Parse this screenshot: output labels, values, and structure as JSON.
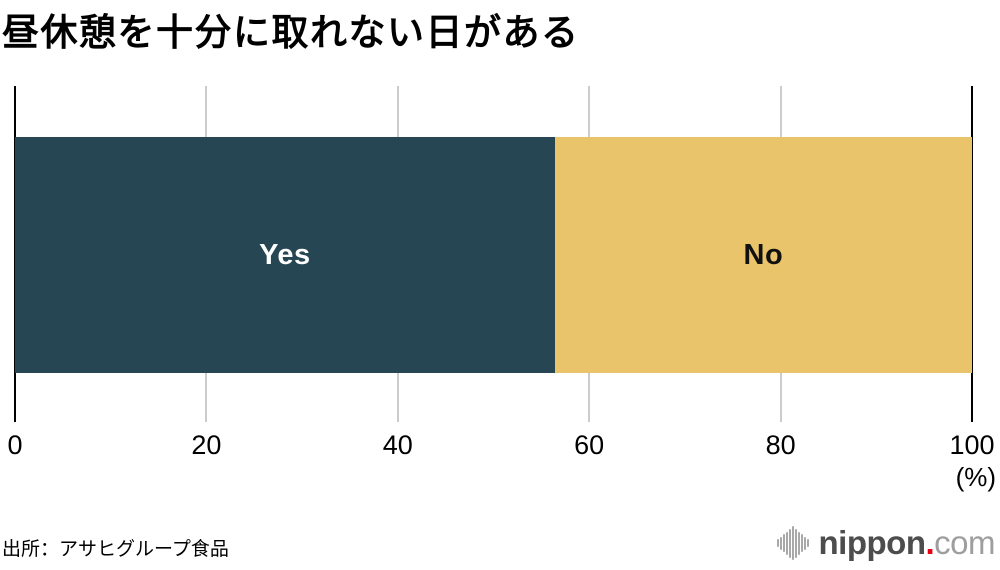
{
  "chart_data": {
    "type": "bar",
    "orientation": "horizontal",
    "stacked": true,
    "title": "昼休憩を十分に取れない日がある",
    "categories": [
      ""
    ],
    "series": [
      {
        "name": "Yes",
        "values": [
          56.4
        ],
        "color": "#264653",
        "text_color": "#ffffff"
      },
      {
        "name": "No",
        "values": [
          43.6
        ],
        "color": "#e9c46a",
        "text_color": "#111111"
      }
    ],
    "xlabel": "(%)",
    "xlim": [
      0,
      100
    ],
    "xticks": [
      "0",
      "20",
      "40",
      "60",
      "80",
      "100"
    ],
    "grid": true,
    "gridline_color": "#cccccc",
    "axis_line_color": "#000000",
    "legend_position": "labels-inside-bars"
  },
  "footer": {
    "source": "出所：アサヒグループ食品",
    "logo": {
      "name": "nippon.com",
      "main": "nippon",
      "dot": ".",
      "suffix": "com",
      "main_color": "#4d4d4d",
      "dot_color": "#e60012",
      "suffix_color": "#9e9e9e",
      "icon_color": "#a8a8a8",
      "icon_bar_heights": [
        8,
        13,
        18,
        23,
        29,
        34,
        29,
        23,
        18,
        13,
        8
      ]
    }
  }
}
